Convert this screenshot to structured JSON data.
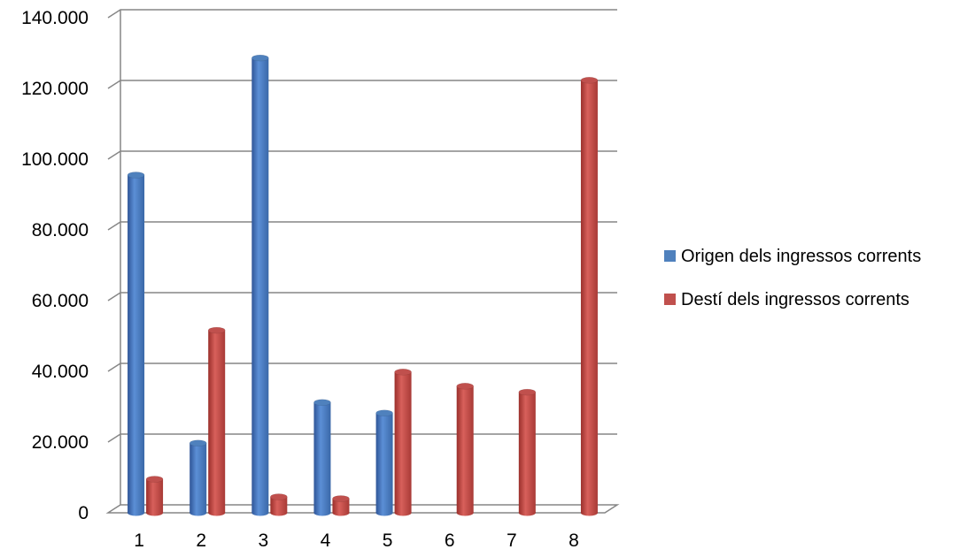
{
  "chart_data": {
    "type": "bar",
    "categories": [
      "1",
      "2",
      "3",
      "4",
      "5",
      "6",
      "7",
      "8"
    ],
    "series": [
      {
        "name": "Origen dels ingressos corrents",
        "color": "#4F81BD",
        "values": [
          95500,
          19700,
          128600,
          31200,
          28200,
          null,
          null,
          null
        ]
      },
      {
        "name": "Destí dels ingressos corrents",
        "color": "#C0504D",
        "values": [
          9500,
          51600,
          4500,
          4000,
          39800,
          35800,
          34100,
          122300
        ]
      }
    ],
    "y_tick_labels": [
      "0",
      "20.000",
      "40.000",
      "60.000",
      "80.000",
      "100.000",
      "120.000",
      "140.000"
    ],
    "ylim": [
      0,
      140000
    ],
    "grid": true,
    "legend_position": "right",
    "title": "",
    "xlabel": "",
    "ylabel": ""
  }
}
